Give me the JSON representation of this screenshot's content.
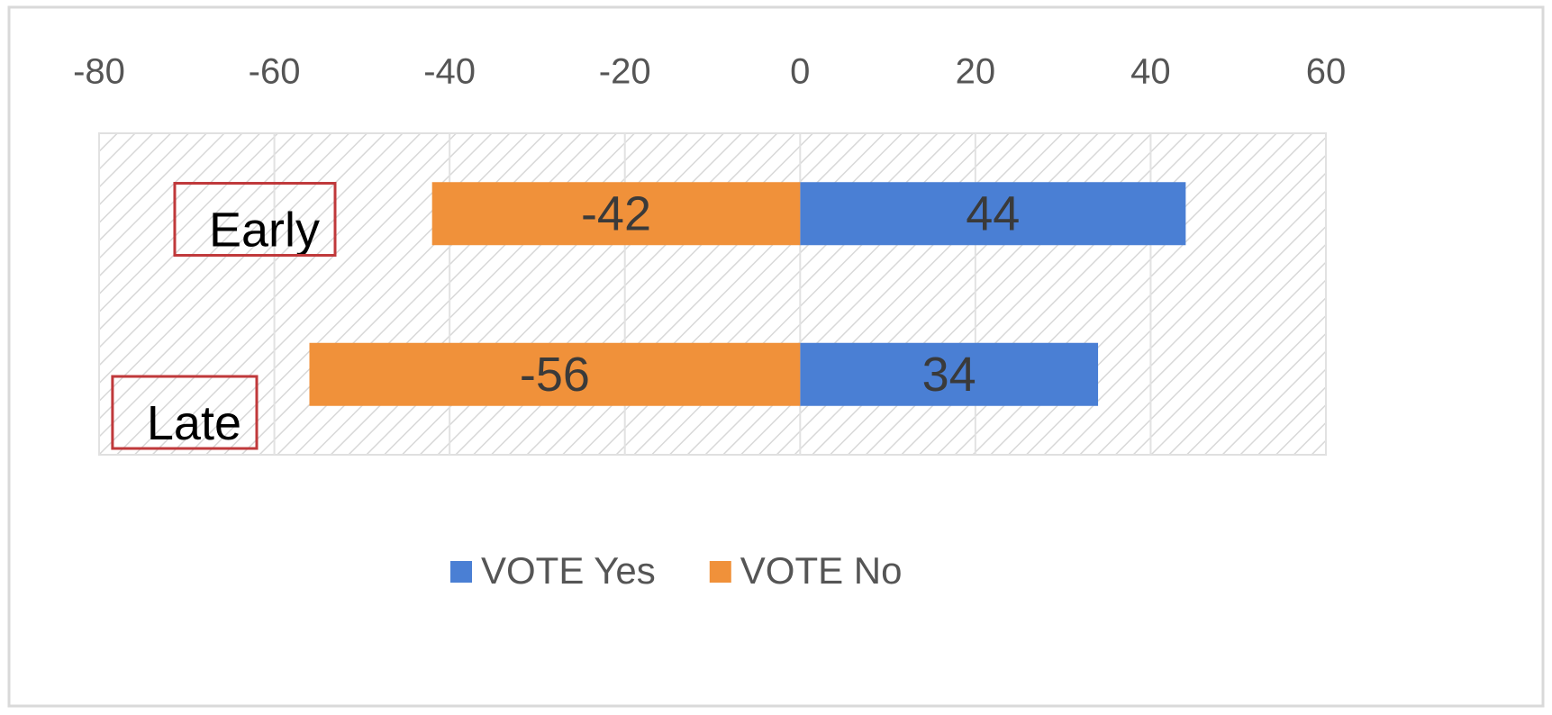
{
  "chart_data": {
    "type": "bar",
    "orientation": "horizontal",
    "stacked": true,
    "categories": [
      "Early",
      "Late"
    ],
    "series": [
      {
        "name": "VOTE Yes",
        "color": "#4a7fd4",
        "values": [
          44,
          34
        ]
      },
      {
        "name": "VOTE No",
        "color": "#f0913a",
        "values": [
          -42,
          -56
        ]
      }
    ],
    "xlim": [
      -80,
      60
    ],
    "xticks": [
      -80,
      -60,
      -40,
      -20,
      0,
      20,
      40,
      60
    ],
    "grid": true,
    "legend": "bottom"
  }
}
